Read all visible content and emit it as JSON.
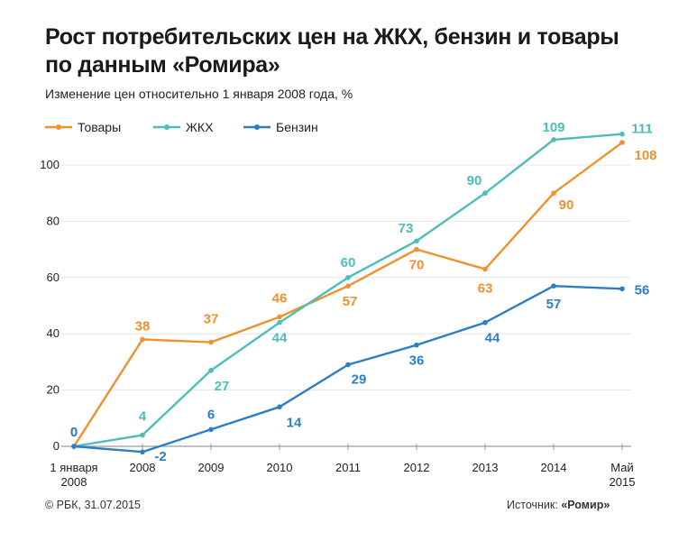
{
  "header": {
    "title_line1": "Рост потребительских цен на ЖКХ, бензин и товары",
    "title_line2": "по данным «Ромира»",
    "subtitle": "Изменение цен относительно 1 января 2008 года, %"
  },
  "footer": {
    "copyright": "© РБК, 31.07.2015",
    "source_prefix": "Источник: ",
    "source_name": "«Ромир»"
  },
  "chart_data": {
    "type": "line",
    "title": "Рост потребительских цен на ЖКХ, бензин и товары по данным «Ромира»",
    "subtitle": "Изменение цен относительно 1 января 2008 года, %",
    "categories": [
      [
        "1 января",
        "2008"
      ],
      [
        "2008"
      ],
      [
        "2009"
      ],
      [
        "2010"
      ],
      [
        "2011"
      ],
      [
        "2012"
      ],
      [
        "2013"
      ],
      [
        "2014"
      ],
      [
        "Май",
        "2015"
      ]
    ],
    "yticks": [
      0,
      20,
      40,
      60,
      80,
      100
    ],
    "ylim": [
      -5,
      115
    ],
    "legend_position": "top-left",
    "series": [
      {
        "name": "Товары",
        "color": "#f0902f",
        "values": [
          0,
          38,
          37,
          46,
          57,
          70,
          63,
          90,
          108
        ]
      },
      {
        "name": "ЖКХ",
        "color": "#4dbdba",
        "values": [
          0,
          4,
          27,
          44,
          60,
          73,
          90,
          109,
          111
        ]
      },
      {
        "name": "Бензин",
        "color": "#2e7ec4",
        "values": [
          0,
          -2,
          6,
          14,
          29,
          36,
          44,
          57,
          56
        ]
      }
    ]
  }
}
